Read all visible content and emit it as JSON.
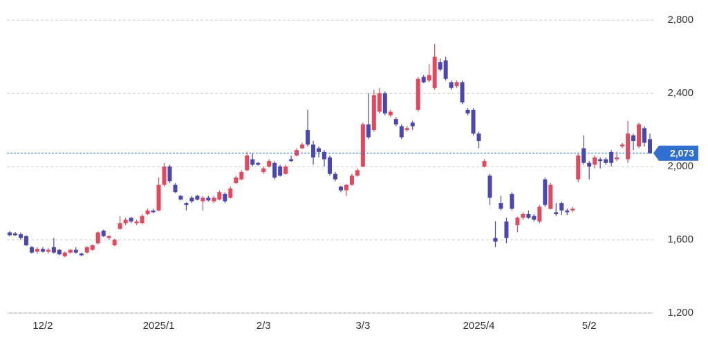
{
  "chart_data": {
    "type": "candlestick",
    "categories": [
      null,
      null,
      null,
      null,
      null,
      null,
      "12/2",
      null,
      null,
      null,
      null,
      null,
      null,
      null,
      null,
      null,
      null,
      null,
      null,
      null,
      null,
      null,
      null,
      null,
      null,
      null,
      null,
      "2025/1",
      null,
      null,
      null,
      null,
      null,
      null,
      null,
      null,
      null,
      null,
      null,
      null,
      null,
      null,
      null,
      null,
      null,
      null,
      "2/3",
      null,
      null,
      null,
      null,
      null,
      null,
      null,
      null,
      null,
      null,
      null,
      null,
      null,
      null,
      null,
      null,
      null,
      "3/3",
      null,
      null,
      null,
      null,
      null,
      null,
      null,
      null,
      null,
      null,
      null,
      null,
      null,
      null,
      null,
      null,
      null,
      null,
      null,
      null,
      "2025/4",
      null,
      null,
      null,
      null,
      null,
      null,
      null,
      null,
      null,
      null,
      null,
      null,
      null,
      null,
      null,
      null,
      null,
      null,
      null,
      "5/2",
      null,
      null,
      null,
      null,
      null,
      null,
      null,
      null,
      null,
      null,
      null
    ],
    "open": [
      1640,
      1635,
      1630,
      1620,
      1560,
      1535,
      1550,
      1535,
      1560,
      1545,
      1510,
      1530,
      1545,
      1525,
      1530,
      1545,
      1580,
      1650,
      1610,
      1570,
      1660,
      1690,
      1720,
      1690,
      1690,
      1740,
      1760,
      1760,
      1900,
      2000,
      1900,
      1840,
      1800,
      1830,
      1840,
      1810,
      1830,
      1810,
      1820,
      1850,
      1830,
      1910,
      1930,
      1980,
      2040,
      2020,
      1970,
      2000,
      2020,
      2000,
      1960,
      2040,
      2060,
      2100,
      2200,
      2120,
      2100,
      2080,
      2050,
      1960,
      1890,
      1870,
      1900,
      1950,
      2000,
      2230,
      2200,
      2300,
      2400,
      2280,
      2260,
      2220,
      2200,
      2240,
      2310,
      2490,
      2470,
      2430,
      2570,
      2580,
      2460,
      2440,
      2460,
      2310,
      2310,
      2180,
      2000,
      1950,
      1610,
      1800,
      1700,
      1850,
      1680,
      1720,
      1740,
      1730,
      1700,
      1930,
      1770,
      1750,
      1800,
      1760,
      1760,
      1930,
      2100,
      2020,
      2010,
      2040,
      2040,
      2080,
      2040,
      2110,
      2040,
      2170,
      2110,
      2210,
      2150
    ],
    "high": [
      1648,
      1642,
      1640,
      1625,
      1565,
      1560,
      1560,
      1555,
      1610,
      1550,
      1535,
      1550,
      1560,
      1530,
      1565,
      1575,
      1645,
      1655,
      1625,
      1605,
      1730,
      1720,
      1725,
      1710,
      1740,
      1770,
      1770,
      1940,
      2020,
      2010,
      1910,
      1845,
      1805,
      1840,
      1845,
      1840,
      1840,
      1840,
      1870,
      1860,
      1890,
      1950,
      1980,
      2080,
      2070,
      2025,
      2000,
      2040,
      2030,
      2010,
      2010,
      2060,
      2100,
      2130,
      2310,
      2140,
      2110,
      2090,
      2060,
      1970,
      1895,
      1905,
      1960,
      1990,
      2240,
      2400,
      2420,
      2430,
      2410,
      2310,
      2270,
      2230,
      2220,
      2250,
      2490,
      2500,
      2560,
      2670,
      2590,
      2600,
      2470,
      2470,
      2470,
      2320,
      2320,
      2190,
      2040,
      1960,
      1700,
      1840,
      1720,
      1860,
      1725,
      1750,
      1760,
      1740,
      1790,
      1940,
      1910,
      1800,
      1810,
      1770,
      1780,
      2070,
      2170,
      2030,
      2060,
      2050,
      2050,
      2090,
      2080,
      2130,
      2250,
      2180,
      2240,
      2220,
      2180
    ],
    "low": [
      1618,
      1620,
      1600,
      1565,
      1525,
      1525,
      1530,
      1525,
      1525,
      1515,
      1505,
      1525,
      1525,
      1510,
      1525,
      1540,
      1575,
      1615,
      1600,
      1565,
      1655,
      1680,
      1690,
      1680,
      1685,
      1735,
      1745,
      1755,
      1890,
      1910,
      1855,
      1815,
      1760,
      1800,
      1815,
      1760,
      1810,
      1800,
      1815,
      1800,
      1825,
      1905,
      1925,
      1975,
      2000,
      2005,
      1960,
      1995,
      1930,
      1945,
      1955,
      2025,
      2055,
      2095,
      2110,
      2010,
      2050,
      2000,
      1950,
      1920,
      1860,
      1840,
      1895,
      1945,
      1995,
      2150,
      2190,
      2290,
      2280,
      2270,
      2220,
      2150,
      2190,
      2200,
      2300,
      2455,
      2460,
      2420,
      2520,
      2470,
      2420,
      2430,
      2340,
      2280,
      2170,
      2100,
      1995,
      1790,
      1560,
      1760,
      1580,
      1760,
      1640,
      1710,
      1715,
      1700,
      1690,
      1780,
      1765,
      1730,
      1735,
      1735,
      1750,
      1915,
      2010,
      1930,
      1990,
      1990,
      2010,
      2000,
      2030,
      2100,
      2020,
      2090,
      2100,
      2110,
      2070
    ],
    "close": [
      1625,
      1625,
      1610,
      1570,
      1530,
      1550,
      1535,
      1545,
      1530,
      1520,
      1530,
      1545,
      1530,
      1515,
      1560,
      1570,
      1640,
      1620,
      1620,
      1600,
      1690,
      1710,
      1700,
      1700,
      1730,
      1760,
      1750,
      1900,
      2000,
      1920,
      1860,
      1820,
      1790,
      1810,
      1820,
      1830,
      1815,
      1830,
      1860,
      1810,
      1880,
      1940,
      1970,
      2060,
      2010,
      2010,
      1990,
      2030,
      1940,
      1950,
      2000,
      2030,
      2090,
      2120,
      2120,
      2050,
      2080,
      2040,
      1960,
      1930,
      1870,
      1900,
      1950,
      1980,
      2230,
      2160,
      2390,
      2400,
      2290,
      2300,
      2230,
      2160,
      2210,
      2220,
      2480,
      2460,
      2500,
      2600,
      2530,
      2480,
      2430,
      2460,
      2350,
      2290,
      2180,
      2140,
      2030,
      1830,
      1590,
      1770,
      1610,
      1770,
      1720,
      1740,
      1720,
      1710,
      1780,
      1790,
      1900,
      1740,
      1760,
      1750,
      1770,
      2060,
      2020,
      2000,
      2050,
      2030,
      2020,
      2020,
      2050,
      2120,
      2180,
      2140,
      2230,
      2130,
      2073
    ],
    "up_color": "#e5485d",
    "down_color": "#4a46b4",
    "ylim": [
      1200,
      2910
    ],
    "yticks": [
      {
        "value": 1200,
        "label": "1,200"
      },
      {
        "value": 1600,
        "label": "1,600"
      },
      {
        "value": 2000,
        "label": "2,000"
      },
      {
        "value": 2400,
        "label": "2,400"
      },
      {
        "value": 2800,
        "label": "2,800"
      }
    ],
    "grid": true,
    "last_price": {
      "value": 2073,
      "label": "2,073"
    },
    "last_price_color": "#2f6fd0"
  }
}
